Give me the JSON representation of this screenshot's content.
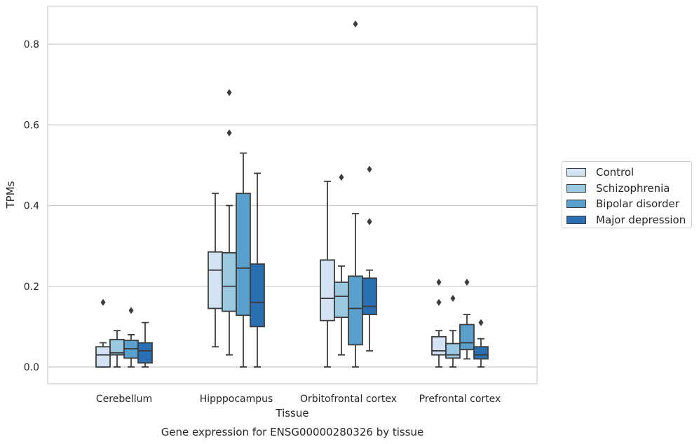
{
  "chart_data": {
    "type": "boxplot",
    "caption": "Gene expression for ENSG00000280326 by tissue",
    "xlabel": "Tissue",
    "ylabel": "TPMs",
    "ylim": [
      -0.04,
      0.895
    ],
    "yticks": [
      0.0,
      0.2,
      0.4,
      0.6,
      0.8
    ],
    "ytick_labels": [
      "0.0",
      "0.2",
      "0.4",
      "0.6",
      "0.8"
    ],
    "grid": "horizontal",
    "legend_position": "right-center",
    "categories": [
      "Cerebellum",
      "Hipppocampus",
      "Orbitofrontal cortex",
      "Prefrontal cortex"
    ],
    "series": [
      {
        "name": "Control",
        "color": "#d4e3f3",
        "boxes": [
          {
            "whislo": 0.0,
            "q1": 0.0,
            "med": 0.03,
            "q3": 0.05,
            "whishi": 0.06,
            "fliers": [
              0.16
            ]
          },
          {
            "whislo": 0.05,
            "q1": 0.145,
            "med": 0.24,
            "q3": 0.285,
            "whishi": 0.43,
            "fliers": []
          },
          {
            "whislo": 0.0,
            "q1": 0.115,
            "med": 0.17,
            "q3": 0.265,
            "whishi": 0.46,
            "fliers": []
          },
          {
            "whislo": 0.0,
            "q1": 0.03,
            "med": 0.04,
            "q3": 0.075,
            "whishi": 0.09,
            "fliers": [
              0.16,
              0.21
            ]
          }
        ]
      },
      {
        "name": "Schizophrenia",
        "color": "#9ac8e0",
        "boxes": [
          {
            "whislo": 0.0,
            "q1": 0.03,
            "med": 0.035,
            "q3": 0.068,
            "whishi": 0.09,
            "fliers": []
          },
          {
            "whislo": 0.03,
            "q1": 0.138,
            "med": 0.2,
            "q3": 0.283,
            "whishi": 0.4,
            "fliers": [
              0.58,
              0.68
            ]
          },
          {
            "whislo": 0.03,
            "q1": 0.123,
            "med": 0.175,
            "q3": 0.21,
            "whishi": 0.25,
            "fliers": [
              0.47
            ]
          },
          {
            "whislo": 0.0,
            "q1": 0.022,
            "med": 0.03,
            "q3": 0.058,
            "whishi": 0.09,
            "fliers": [
              0.17
            ]
          }
        ]
      },
      {
        "name": "Bipolar disorder",
        "color": "#5aa0cd",
        "boxes": [
          {
            "whislo": 0.0,
            "q1": 0.022,
            "med": 0.045,
            "q3": 0.066,
            "whishi": 0.08,
            "fliers": [
              0.14
            ]
          },
          {
            "whislo": 0.0,
            "q1": 0.128,
            "med": 0.245,
            "q3": 0.43,
            "whishi": 0.53,
            "fliers": []
          },
          {
            "whislo": 0.0,
            "q1": 0.055,
            "med": 0.145,
            "q3": 0.225,
            "whishi": 0.38,
            "fliers": [
              0.85
            ]
          },
          {
            "whislo": 0.02,
            "q1": 0.043,
            "med": 0.06,
            "q3": 0.105,
            "whishi": 0.13,
            "fliers": [
              0.21
            ]
          }
        ]
      },
      {
        "name": "Major depression",
        "color": "#2a6fb2",
        "boxes": [
          {
            "whislo": 0.0,
            "q1": 0.01,
            "med": 0.04,
            "q3": 0.06,
            "whishi": 0.11,
            "fliers": []
          },
          {
            "whislo": 0.0,
            "q1": 0.1,
            "med": 0.16,
            "q3": 0.255,
            "whishi": 0.48,
            "fliers": []
          },
          {
            "whislo": 0.04,
            "q1": 0.13,
            "med": 0.15,
            "q3": 0.22,
            "whishi": 0.24,
            "fliers": [
              0.36,
              0.36,
              0.49
            ]
          },
          {
            "whislo": 0.0,
            "q1": 0.02,
            "med": 0.03,
            "q3": 0.05,
            "whishi": 0.07,
            "fliers": [
              0.11
            ]
          }
        ]
      }
    ]
  }
}
